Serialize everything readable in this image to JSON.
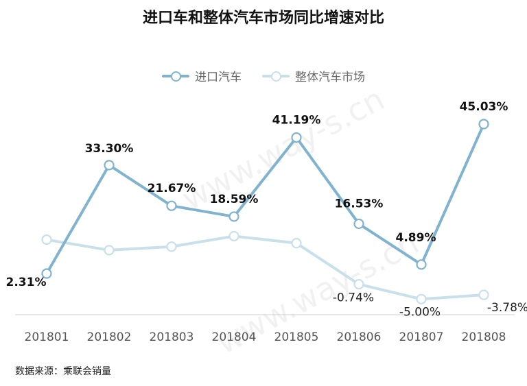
{
  "chart_data": {
    "type": "line",
    "title": "进口车和整体汽车市场同比增速对比",
    "categories": [
      "201801",
      "201802",
      "201803",
      "201804",
      "201805",
      "201806",
      "201807",
      "201808"
    ],
    "series": [
      {
        "name": "进口汽车",
        "color": "#7fb3cf",
        "values": [
          2.31,
          33.3,
          21.67,
          18.59,
          41.19,
          16.53,
          4.89,
          45.03
        ],
        "labels": [
          "2.31%",
          "33.30%",
          "21.67%",
          "18.59%",
          "41.19%",
          "16.53%",
          "4.89%",
          "45.03%"
        ]
      },
      {
        "name": "整体汽车市场",
        "color": "#c7e0ea",
        "values": [
          12.0,
          9.0,
          10.0,
          13.0,
          11.0,
          -0.74,
          -5.0,
          -3.78
        ],
        "labels": [
          "",
          "",
          "",
          "",
          "",
          "-0.74%",
          "-5.00%",
          "-3.78%"
        ]
      }
    ],
    "legend_position": "top-center",
    "grid": false
  },
  "source_note": "数据来源：乘联会销量",
  "watermark": "www.way-s.cn"
}
